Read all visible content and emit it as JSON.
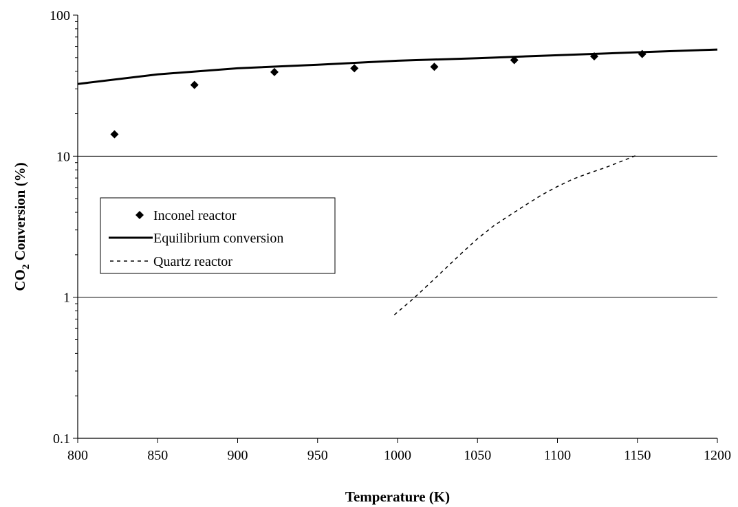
{
  "chart_data": {
    "type": "scatter",
    "title": "",
    "xlabel": "Temperature (K)",
    "ylabel": {
      "prefix": "CO",
      "subscript": "2",
      "suffix": " Conversion (%)"
    },
    "xlim": [
      800,
      1200
    ],
    "ylim": [
      0.1,
      100
    ],
    "yscale": "log",
    "xticks": [
      "800",
      "850",
      "900",
      "950",
      "1000",
      "1050",
      "1100",
      "1150",
      "1200"
    ],
    "yticks": [
      "0.1",
      "1",
      "10",
      "100"
    ],
    "grid": "horizontal major lines at 1, 10, 100",
    "legend_placement": "center-left",
    "legend": [
      "Inconel reactor",
      "Equilibrium conversion",
      "Quartz reactor"
    ],
    "series": [
      {
        "name": "Inconel reactor",
        "style": "markers",
        "marker": "diamond",
        "color": "#000000",
        "x": [
          823,
          873,
          923,
          973,
          1023,
          1073,
          1123,
          1153
        ],
        "y": [
          14.3,
          32,
          39.5,
          42,
          43,
          48,
          51,
          53
        ]
      },
      {
        "name": "Equilibrium conversion",
        "style": "solid",
        "color": "#000000",
        "x": [
          800,
          850,
          900,
          950,
          1000,
          1050,
          1100,
          1150,
          1200
        ],
        "y": [
          32.5,
          38,
          42,
          44.5,
          47.5,
          49.5,
          52,
          54.5,
          57
        ]
      },
      {
        "name": "Quartz reactor",
        "style": "dashed",
        "color": "#000000",
        "x": [
          998,
          1010,
          1020,
          1030,
          1040,
          1050,
          1060,
          1070,
          1080,
          1090,
          1100,
          1110,
          1120,
          1130,
          1140,
          1150
        ],
        "y": [
          0.75,
          0.98,
          1.25,
          1.6,
          2.05,
          2.6,
          3.2,
          3.8,
          4.5,
          5.3,
          6.1,
          6.9,
          7.6,
          8.3,
          9.2,
          10.2
        ]
      }
    ]
  }
}
